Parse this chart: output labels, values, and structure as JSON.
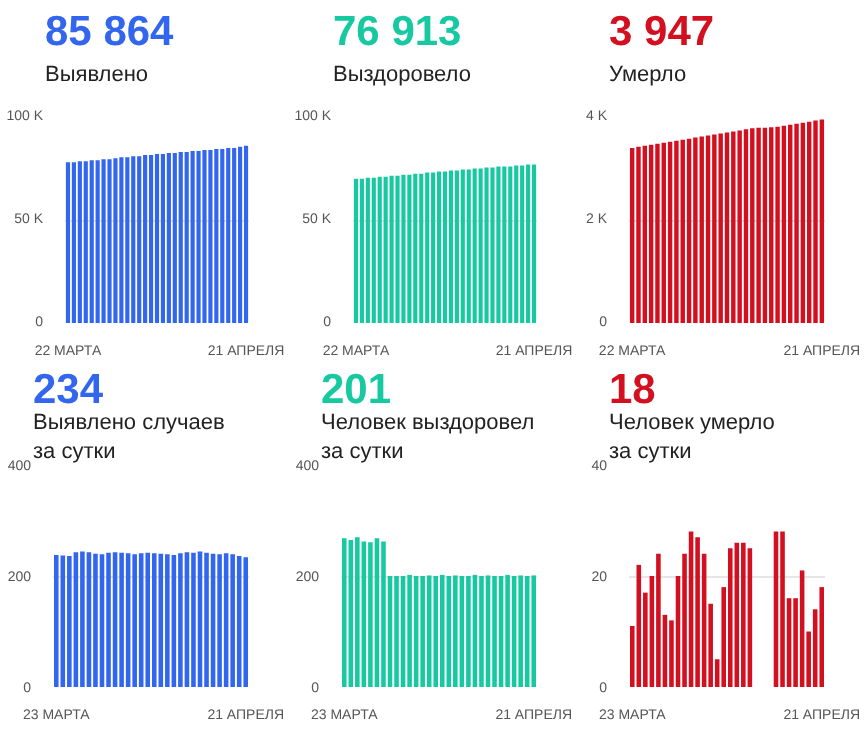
{
  "chart_data": [
    {
      "type": "bar",
      "title": "85 864",
      "subtitle": "Выявлено",
      "categories": [
        "22 МАРТА",
        null,
        null,
        null,
        null,
        null,
        null,
        null,
        null,
        null,
        null,
        null,
        null,
        null,
        null,
        null,
        null,
        null,
        null,
        null,
        null,
        null,
        null,
        null,
        null,
        null,
        null,
        null,
        null,
        null,
        "21 АПРЕЛЯ"
      ],
      "color": "#3366ee",
      "values": [
        78000,
        78000,
        78500,
        78500,
        79000,
        79000,
        79500,
        79500,
        80000,
        80500,
        80500,
        81000,
        81000,
        81500,
        81500,
        82000,
        82000,
        82500,
        82500,
        83000,
        83000,
        83500,
        83500,
        84000,
        84000,
        84500,
        84500,
        85000,
        85000,
        85500,
        86000
      ],
      "ylim": [
        0,
        100000
      ],
      "yticks": [
        0,
        {
          "value": 50000,
          "label": "50 K"
        },
        {
          "value": 100000,
          "label": "100 K"
        }
      ],
      "grid": "y"
    },
    {
      "type": "bar",
      "title": "76 913",
      "subtitle": "Выздоровело",
      "categories": [
        "22 МАРТА",
        null,
        null,
        null,
        null,
        null,
        null,
        null,
        null,
        null,
        null,
        null,
        null,
        null,
        null,
        null,
        null,
        null,
        null,
        null,
        null,
        null,
        null,
        null,
        null,
        null,
        null,
        null,
        null,
        null,
        "21 АПРЕЛЯ"
      ],
      "color": "#17c9a1",
      "values": [
        70000,
        70000,
        70500,
        70500,
        71000,
        71000,
        71500,
        71500,
        72000,
        72000,
        72500,
        72500,
        73000,
        73000,
        73500,
        73500,
        74000,
        74000,
        74500,
        74500,
        75000,
        75000,
        75500,
        75500,
        76000,
        76000,
        76000,
        76500,
        76500,
        77000,
        77000
      ],
      "ylim": [
        0,
        100000
      ],
      "yticks": [
        0,
        {
          "value": 50000,
          "label": "50 K"
        },
        {
          "value": 100000,
          "label": "100 K"
        }
      ],
      "grid": "y"
    },
    {
      "type": "bar",
      "title": "3 947",
      "subtitle": "Умерло",
      "categories": [
        "22 МАРТА",
        null,
        null,
        null,
        null,
        null,
        null,
        null,
        null,
        null,
        null,
        null,
        null,
        null,
        null,
        null,
        null,
        null,
        null,
        null,
        null,
        null,
        null,
        null,
        null,
        null,
        null,
        null,
        null,
        null,
        "21 АПРЕЛЯ"
      ],
      "color": "#d21020",
      "values": [
        3400,
        3420,
        3440,
        3460,
        3480,
        3500,
        3520,
        3540,
        3560,
        3580,
        3600,
        3620,
        3640,
        3660,
        3680,
        3700,
        3720,
        3740,
        3760,
        3780,
        3790,
        3790,
        3800,
        3810,
        3830,
        3850,
        3870,
        3890,
        3910,
        3930,
        3950
      ],
      "ylim": [
        0,
        4000
      ],
      "yticks": [
        0,
        {
          "value": 2000,
          "label": "2 K"
        },
        {
          "value": 4000,
          "label": "4 K"
        }
      ],
      "grid": "y"
    },
    {
      "type": "bar",
      "title": "234",
      "subtitle": "Выявлено случаев за сутки",
      "categories": [
        "23 МАРТА",
        null,
        null,
        null,
        null,
        null,
        null,
        null,
        null,
        null,
        null,
        null,
        null,
        null,
        null,
        null,
        null,
        null,
        null,
        null,
        null,
        null,
        null,
        null,
        null,
        null,
        null,
        null,
        null,
        "21 АПРЕЛЯ"
      ],
      "color": "#3366ee",
      "values": [
        238,
        237,
        236,
        243,
        244,
        243,
        240,
        239,
        242,
        243,
        242,
        241,
        239,
        241,
        242,
        241,
        240,
        239,
        238,
        241,
        243,
        242,
        244,
        242,
        240,
        239,
        241,
        239,
        236,
        234
      ],
      "ylim": [
        0,
        400
      ],
      "yticks": [
        0,
        200,
        400
      ],
      "grid": "y"
    },
    {
      "type": "bar",
      "title": "201",
      "subtitle": "Человек выздоровел за сутки",
      "categories": [
        "23 МАРТА",
        null,
        null,
        null,
        null,
        null,
        null,
        null,
        null,
        null,
        null,
        null,
        null,
        null,
        null,
        null,
        null,
        null,
        null,
        null,
        null,
        null,
        null,
        null,
        null,
        null,
        null,
        null,
        null,
        "21 АПРЕЛЯ"
      ],
      "color": "#17c9a1",
      "values": [
        268,
        265,
        270,
        262,
        261,
        268,
        262,
        200,
        200,
        200,
        202,
        200,
        200,
        201,
        200,
        202,
        200,
        201,
        200,
        200,
        202,
        200,
        201,
        200,
        200,
        202,
        200,
        201,
        200,
        201
      ],
      "ylim": [
        0,
        400
      ],
      "yticks": [
        0,
        200,
        400
      ],
      "grid": "y"
    },
    {
      "type": "bar",
      "title": "18",
      "subtitle": "Человек умерло за сутки",
      "categories": [
        "23 МАРТА",
        null,
        null,
        null,
        null,
        null,
        null,
        null,
        null,
        null,
        null,
        null,
        null,
        null,
        null,
        null,
        null,
        null,
        null,
        null,
        null,
        null,
        null,
        null,
        null,
        null,
        null,
        null,
        null,
        "21 АПРЕЛЯ"
      ],
      "color": "#d21020",
      "values": [
        11,
        22,
        17,
        20,
        24,
        13,
        12,
        20,
        24,
        28,
        27,
        24,
        15,
        5,
        18,
        25,
        26,
        26,
        25,
        null,
        null,
        null,
        28,
        28,
        16,
        16,
        21,
        10,
        14,
        18
      ],
      "ylim": [
        0,
        40
      ],
      "yticks": [
        0,
        20,
        40
      ],
      "grid": "y"
    }
  ]
}
